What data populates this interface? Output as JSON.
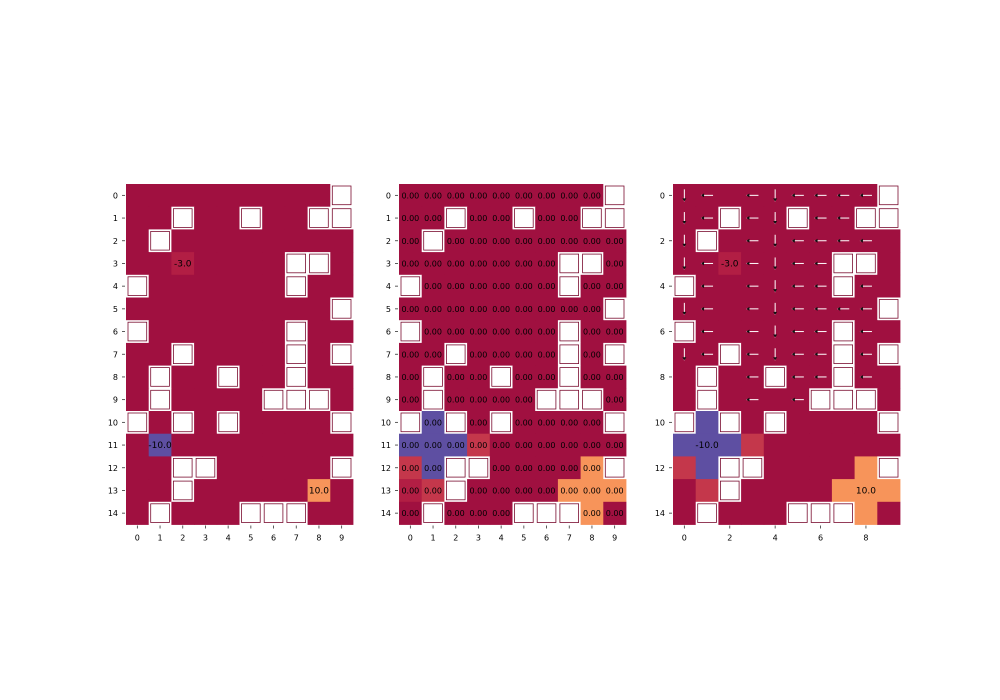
{
  "figure": {
    "colors": {
      "background": "#ffffff",
      "wall": "#ffffff",
      "floor": "#a01040",
      "negative_high": "#5e4fa2",
      "positive_high": "#f7945a",
      "medium_red": "#c4374b",
      "text": "#000000"
    }
  },
  "chart_data": [
    {
      "type": "heatmap",
      "rows": 15,
      "cols": 10,
      "x_ticks": [
        "0",
        "1",
        "2",
        "3",
        "4",
        "5",
        "6",
        "7",
        "8",
        "9"
      ],
      "y_ticks": [
        "0",
        "1",
        "2",
        "3",
        "4",
        "5",
        "6",
        "7",
        "8",
        "9",
        "10",
        "11",
        "12",
        "13",
        "14"
      ],
      "walls": [
        [
          0,
          9
        ],
        [
          1,
          2
        ],
        [
          1,
          5
        ],
        [
          1,
          8
        ],
        [
          1,
          9
        ],
        [
          2,
          1
        ],
        [
          3,
          7
        ],
        [
          3,
          8
        ],
        [
          4,
          0
        ],
        [
          4,
          7
        ],
        [
          5,
          9
        ],
        [
          6,
          0
        ],
        [
          6,
          7
        ],
        [
          7,
          2
        ],
        [
          7,
          7
        ],
        [
          7,
          9
        ],
        [
          8,
          1
        ],
        [
          8,
          4
        ],
        [
          8,
          7
        ],
        [
          9,
          1
        ],
        [
          9,
          6
        ],
        [
          9,
          7
        ],
        [
          9,
          8
        ],
        [
          10,
          0
        ],
        [
          10,
          2
        ],
        [
          10,
          4
        ],
        [
          10,
          9
        ],
        [
          12,
          2
        ],
        [
          12,
          3
        ],
        [
          12,
          9
        ],
        [
          13,
          2
        ],
        [
          14,
          1
        ],
        [
          14,
          5
        ],
        [
          14,
          6
        ],
        [
          14,
          7
        ]
      ],
      "annotations": [
        {
          "row": 3,
          "col": 2,
          "text": "-3.0"
        },
        {
          "row": 11,
          "col": 1,
          "text": "-10.0"
        },
        {
          "row": 13,
          "col": 8,
          "text": "10.0"
        }
      ],
      "special_cells": [
        {
          "row": 3,
          "col": 2,
          "color": "#b21e44"
        },
        {
          "row": 11,
          "col": 1,
          "color": "#5e4fa2"
        },
        {
          "row": 13,
          "col": 8,
          "color": "#f7945a"
        }
      ]
    },
    {
      "type": "heatmap",
      "rows": 15,
      "cols": 10,
      "x_ticks": [
        "0",
        "1",
        "2",
        "3",
        "4",
        "5",
        "6",
        "7",
        "8",
        "9"
      ],
      "y_ticks": [
        "0",
        "1",
        "2",
        "3",
        "4",
        "5",
        "6",
        "7",
        "8",
        "9",
        "10",
        "11",
        "12",
        "13",
        "14"
      ],
      "cell_label": "0.00",
      "walls": [
        [
          0,
          9
        ],
        [
          1,
          2
        ],
        [
          1,
          5
        ],
        [
          1,
          8
        ],
        [
          1,
          9
        ],
        [
          2,
          1
        ],
        [
          3,
          7
        ],
        [
          3,
          8
        ],
        [
          4,
          0
        ],
        [
          4,
          7
        ],
        [
          5,
          9
        ],
        [
          6,
          0
        ],
        [
          6,
          7
        ],
        [
          7,
          2
        ],
        [
          7,
          7
        ],
        [
          7,
          9
        ],
        [
          8,
          1
        ],
        [
          8,
          4
        ],
        [
          8,
          7
        ],
        [
          9,
          1
        ],
        [
          9,
          6
        ],
        [
          9,
          7
        ],
        [
          9,
          8
        ],
        [
          10,
          0
        ],
        [
          10,
          2
        ],
        [
          10,
          4
        ],
        [
          10,
          9
        ],
        [
          12,
          2
        ],
        [
          12,
          3
        ],
        [
          12,
          9
        ],
        [
          13,
          2
        ],
        [
          14,
          1
        ],
        [
          14,
          5
        ],
        [
          14,
          6
        ],
        [
          14,
          7
        ]
      ],
      "special_cells": [
        {
          "row": 10,
          "col": 1,
          "color": "#5e4fa2"
        },
        {
          "row": 11,
          "col": 0,
          "color": "#5e4fa2"
        },
        {
          "row": 11,
          "col": 1,
          "color": "#5e4fa2"
        },
        {
          "row": 11,
          "col": 2,
          "color": "#5e4fa2"
        },
        {
          "row": 11,
          "col": 3,
          "color": "#c4374b"
        },
        {
          "row": 12,
          "col": 0,
          "color": "#c4374b"
        },
        {
          "row": 12,
          "col": 1,
          "color": "#5e4fa2"
        },
        {
          "row": 13,
          "col": 0,
          "color": "#b21e44"
        },
        {
          "row": 13,
          "col": 1,
          "color": "#c4374b"
        },
        {
          "row": 12,
          "col": 8,
          "color": "#f7945a"
        },
        {
          "row": 13,
          "col": 7,
          "color": "#f7945a"
        },
        {
          "row": 13,
          "col": 8,
          "color": "#f7945a"
        },
        {
          "row": 13,
          "col": 9,
          "color": "#f7945a"
        },
        {
          "row": 14,
          "col": 8,
          "color": "#f7945a"
        }
      ]
    },
    {
      "type": "heatmap",
      "rows": 15,
      "cols": 10,
      "x_ticks": [
        "0",
        "2",
        "4",
        "6",
        "8"
      ],
      "y_ticks": [
        "0",
        "2",
        "4",
        "6",
        "8",
        "10",
        "12",
        "14"
      ],
      "walls": [
        [
          0,
          9
        ],
        [
          1,
          2
        ],
        [
          1,
          5
        ],
        [
          1,
          8
        ],
        [
          1,
          9
        ],
        [
          2,
          1
        ],
        [
          3,
          7
        ],
        [
          3,
          8
        ],
        [
          4,
          0
        ],
        [
          4,
          7
        ],
        [
          5,
          9
        ],
        [
          6,
          0
        ],
        [
          6,
          7
        ],
        [
          7,
          2
        ],
        [
          7,
          7
        ],
        [
          7,
          9
        ],
        [
          8,
          1
        ],
        [
          8,
          4
        ],
        [
          8,
          7
        ],
        [
          9,
          1
        ],
        [
          9,
          6
        ],
        [
          9,
          7
        ],
        [
          9,
          8
        ],
        [
          10,
          0
        ],
        [
          10,
          2
        ],
        [
          10,
          4
        ],
        [
          10,
          9
        ],
        [
          12,
          2
        ],
        [
          12,
          3
        ],
        [
          12,
          9
        ],
        [
          13,
          2
        ],
        [
          14,
          1
        ],
        [
          14,
          5
        ],
        [
          14,
          6
        ],
        [
          14,
          7
        ]
      ],
      "annotations": [
        {
          "row": 3,
          "col": 2,
          "text": "-3.0"
        },
        {
          "row": 11,
          "col": 1,
          "text": "-10.0"
        },
        {
          "row": 13,
          "col": 8,
          "text": "10.0"
        }
      ],
      "special_cells": [
        {
          "row": 3,
          "col": 2,
          "color": "#b21e44"
        },
        {
          "row": 10,
          "col": 1,
          "color": "#5e4fa2"
        },
        {
          "row": 11,
          "col": 0,
          "color": "#5e4fa2"
        },
        {
          "row": 11,
          "col": 1,
          "color": "#5e4fa2"
        },
        {
          "row": 11,
          "col": 2,
          "color": "#5e4fa2"
        },
        {
          "row": 11,
          "col": 3,
          "color": "#c4374b"
        },
        {
          "row": 12,
          "col": 0,
          "color": "#c4374b"
        },
        {
          "row": 12,
          "col": 1,
          "color": "#5e4fa2"
        },
        {
          "row": 13,
          "col": 1,
          "color": "#c4374b"
        },
        {
          "row": 12,
          "col": 8,
          "color": "#f7945a"
        },
        {
          "row": 13,
          "col": 7,
          "color": "#f7945a"
        },
        {
          "row": 13,
          "col": 8,
          "color": "#f7945a"
        },
        {
          "row": 13,
          "col": 9,
          "color": "#f7945a"
        },
        {
          "row": 14,
          "col": 8,
          "color": "#f7945a"
        }
      ],
      "arrows": [
        {
          "dir": "left",
          "rows": [
            0,
            1,
            2,
            3,
            4,
            5,
            6,
            7,
            8,
            9
          ],
          "cols": [
            1,
            3,
            5,
            6,
            7,
            8
          ]
        },
        {
          "dir": "down",
          "rows": [
            0,
            1,
            2,
            3,
            4,
            5,
            6,
            7
          ],
          "cols": [
            0,
            4
          ]
        }
      ]
    }
  ]
}
